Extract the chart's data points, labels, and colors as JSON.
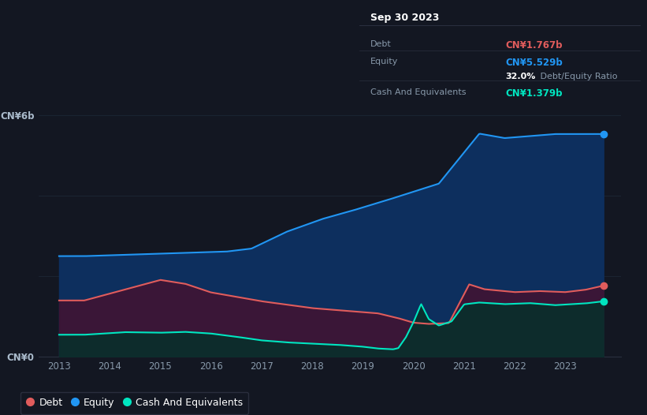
{
  "background_color": "#131722",
  "plot_bg_color": "#131722",
  "debt_color": "#e05c5c",
  "equity_color": "#2196f3",
  "cash_color": "#00e5c0",
  "ylabel_top": "CN¥6b",
  "ylabel_bottom": "CN¥0",
  "ylim": [
    0,
    7.0
  ],
  "xlim_left": 2012.6,
  "xlim_right": 2024.1,
  "tooltip_date": "Sep 30 2023",
  "tooltip_debt_label": "Debt",
  "tooltip_debt_val": "CN¥1.767b",
  "tooltip_equity_label": "Equity",
  "tooltip_equity_val": "CN¥5.529b",
  "tooltip_ratio_bold": "32.0%",
  "tooltip_ratio_rest": " Debt/Equity Ratio",
  "tooltip_cash_label": "Cash And Equivalents",
  "tooltip_cash_val": "CN¥1.379b",
  "legend_labels": [
    "Debt",
    "Equity",
    "Cash And Equivalents"
  ]
}
